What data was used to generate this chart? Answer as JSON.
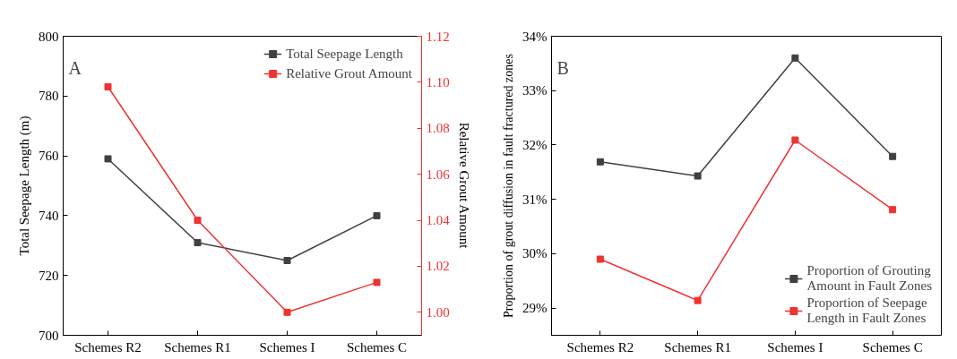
{
  "chart_data": [
    {
      "type": "line",
      "annotations": [
        "A"
      ],
      "categories": [
        "Schemes R2",
        "Schemes R1",
        "Schemes I",
        "Schemes C"
      ],
      "ylabel": "Total Seepage Length (m)",
      "y2label": "Relative Grout Amount",
      "ylim": [
        700,
        800
      ],
      "yticks": [
        700,
        720,
        740,
        760,
        780,
        800
      ],
      "y2lim": [
        0.99,
        1.12
      ],
      "y2ticks": [
        {
          "value": 1.0,
          "label": "1.00"
        },
        {
          "value": 1.02,
          "label": "1.02"
        },
        {
          "value": 1.04,
          "label": "1.04"
        },
        {
          "value": 1.06,
          "label": "1.06"
        },
        {
          "value": 1.08,
          "label": "1.08"
        },
        {
          "value": 1.1,
          "label": "1.10"
        },
        {
          "value": 1.12,
          "label": "1.12"
        }
      ],
      "marker": "square",
      "legend": "top right",
      "grid": false,
      "series": [
        {
          "name": "Total Seepage Length",
          "color": "#404040",
          "values": [
            759,
            731,
            725,
            740
          ]
        },
        {
          "name": "Relative Grout Amount",
          "color": "#ee3333",
          "axis": "y2",
          "values": [
            1.098,
            1.04,
            1.0,
            1.013
          ]
        }
      ]
    },
    {
      "type": "line",
      "annotations": [
        "B"
      ],
      "categories": [
        "Schemes R2",
        "Schemes R1",
        "Schemes I",
        "Schemes C"
      ],
      "ylabel": "Proportion of grout diffusion in fault fractured zones",
      "ylim": [
        28.5,
        34
      ],
      "yticks": [
        {
          "value": 29,
          "label": "29%"
        },
        {
          "value": 30,
          "label": "30%"
        },
        {
          "value": 31,
          "label": "31%"
        },
        {
          "value": 32,
          "label": "32%"
        },
        {
          "value": 33,
          "label": "33%"
        },
        {
          "value": 34,
          "label": "34%"
        }
      ],
      "marker": "square",
      "legend": "bottom right",
      "grid": false,
      "series": [
        {
          "name": "Proportion of Grouting Amount in Fault Zones",
          "color": "#404040",
          "values": [
            31.69,
            31.43,
            33.6,
            31.79
          ]
        },
        {
          "name": "Proportion of Seepage Length in Fault Zones",
          "color": "#ee3333",
          "values": [
            29.9,
            29.14,
            32.09,
            30.81
          ]
        }
      ]
    }
  ]
}
